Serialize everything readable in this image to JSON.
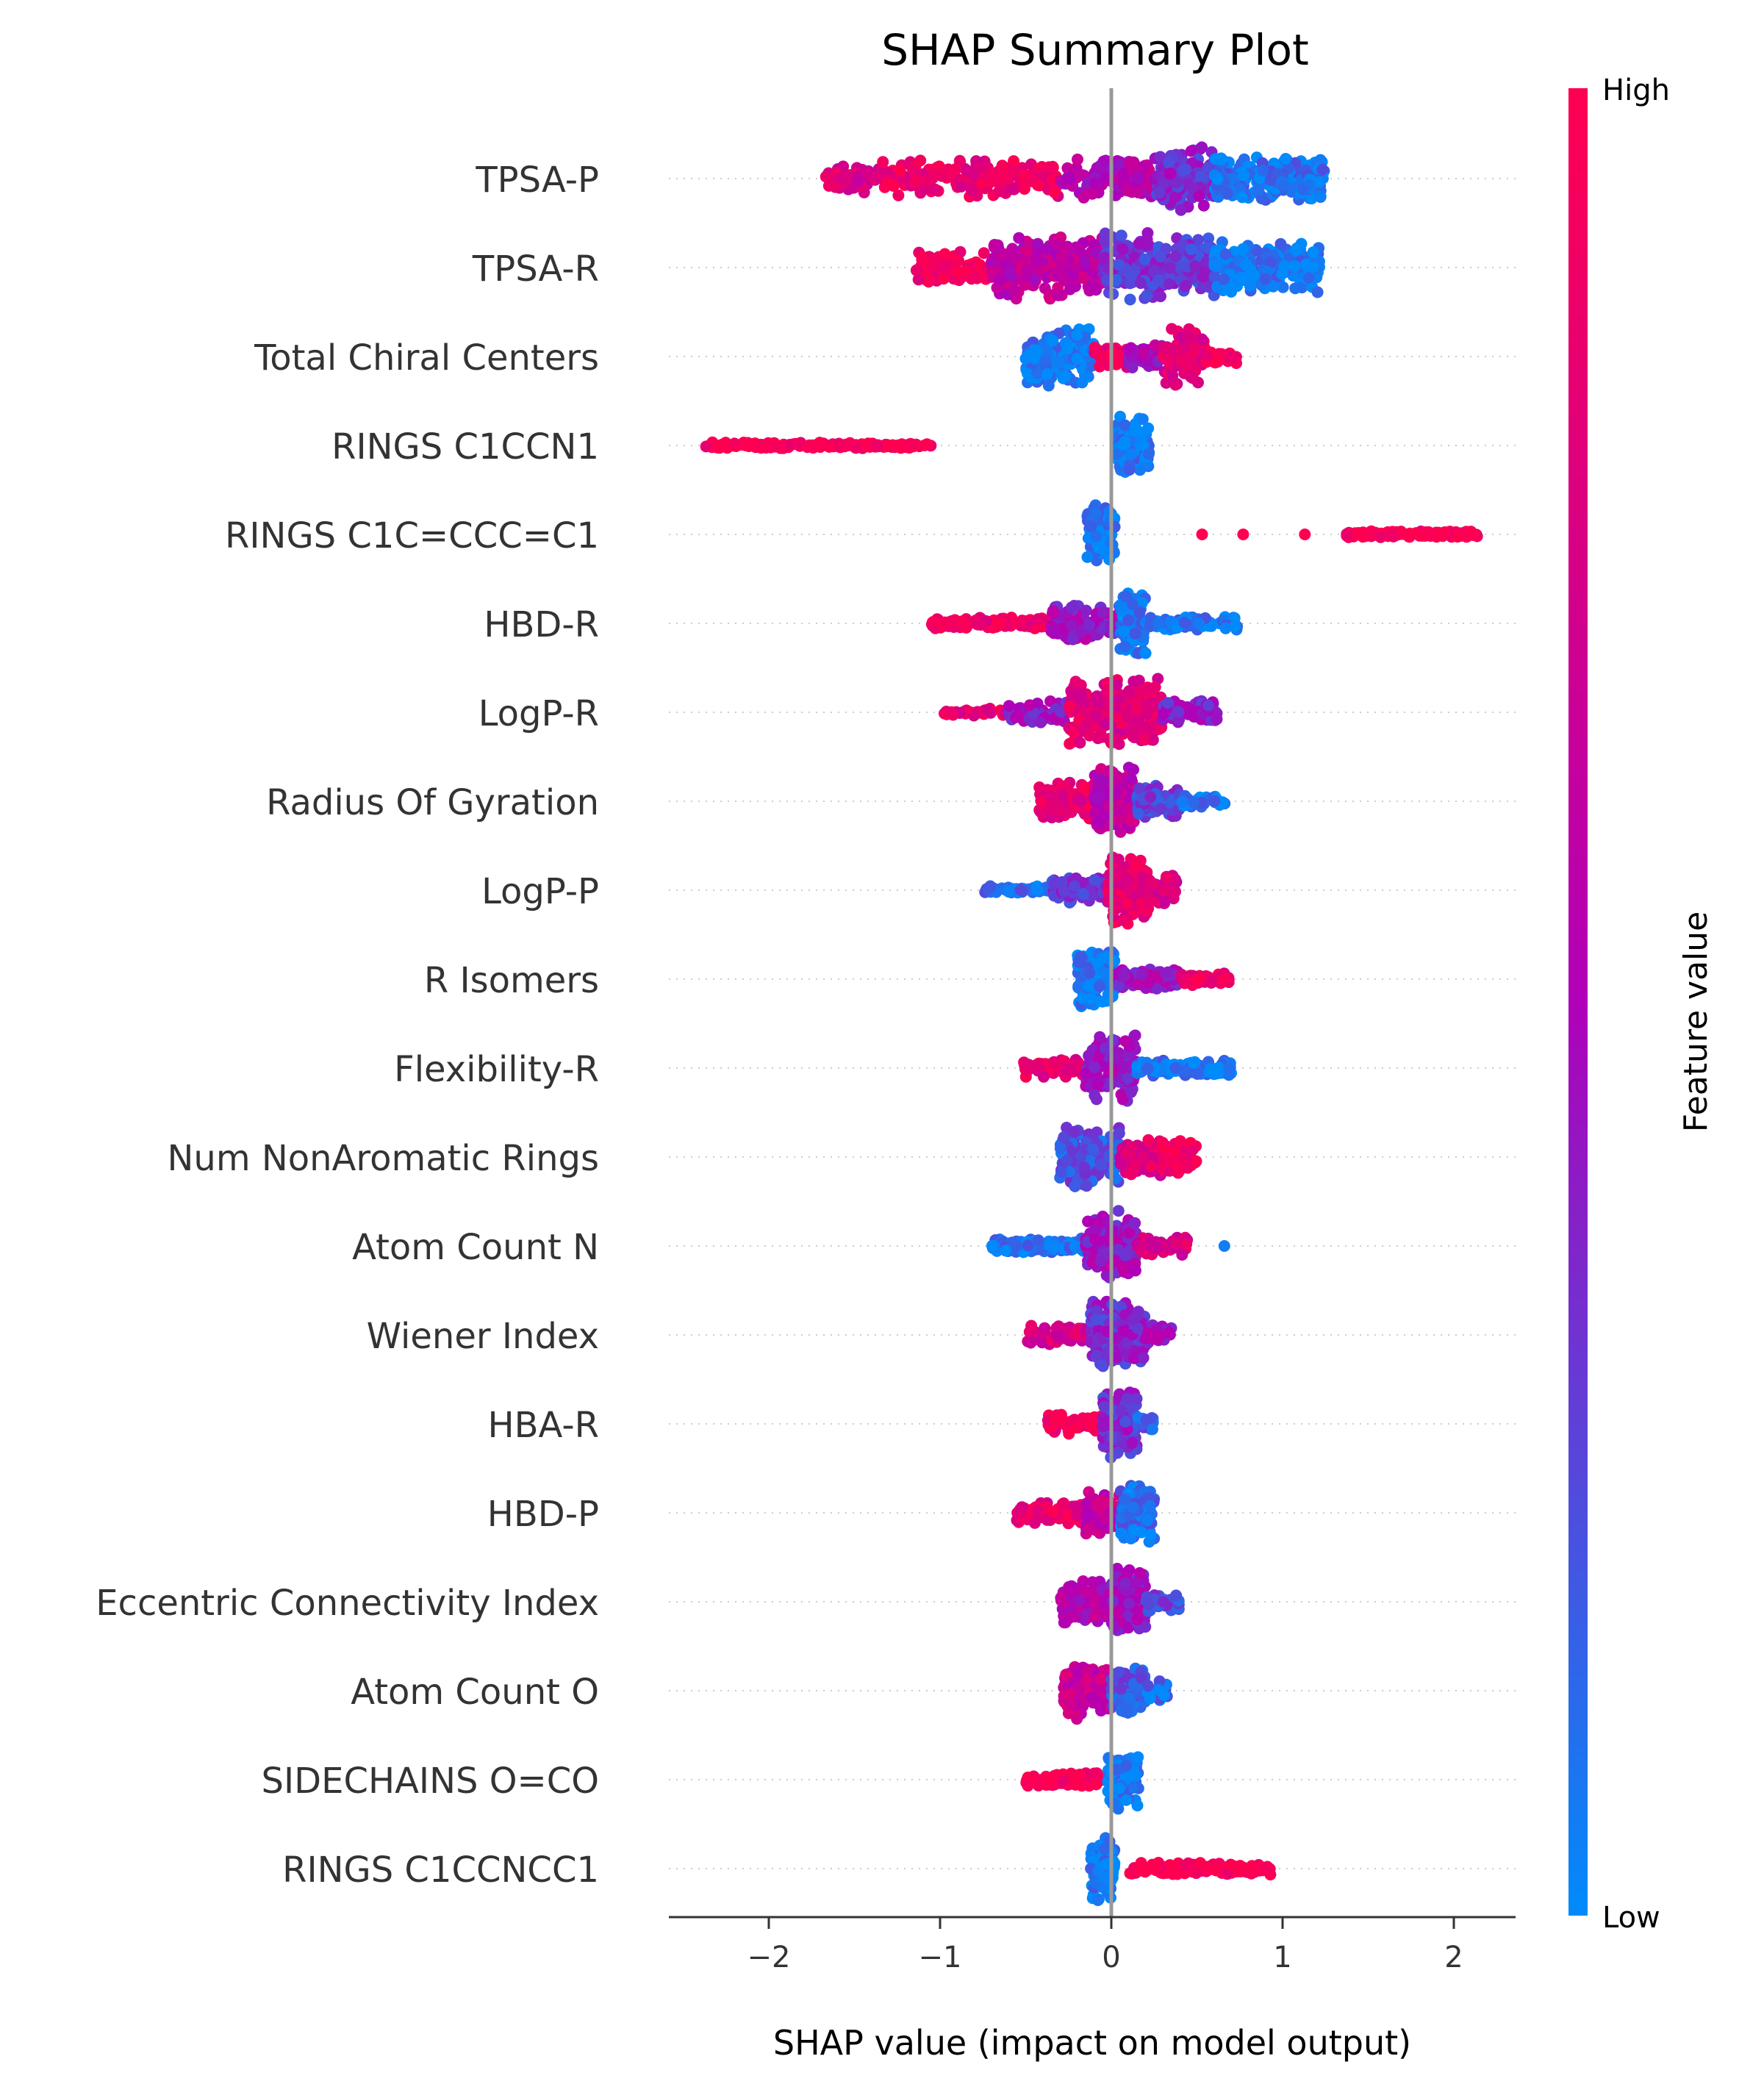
{
  "chart_data": {
    "type": "scatter",
    "subtype": "shap-beeswarm",
    "title": "SHAP Summary Plot",
    "xlabel": "SHAP value (impact on model output)",
    "xlim": [
      -2.6,
      2.35
    ],
    "xticks": [
      -2,
      -1,
      0,
      1,
      2
    ],
    "xtick_labels": [
      "−2",
      "−1",
      "0",
      "1",
      "2"
    ],
    "grid": false,
    "zero_line": true,
    "colorbar": {
      "label": "Feature value",
      "high_label": "High",
      "low_label": "Low",
      "high_color": "#ff0051",
      "mid_color": "#b000b8",
      "low_color": "#008bfb"
    },
    "features": [
      {
        "name": "TPSA-P",
        "segments": [
          {
            "from": -1.68,
            "to": -1.35,
            "color": 0.75,
            "n": 60,
            "w": 0.45
          },
          {
            "from": -1.35,
            "to": -0.3,
            "color": 0.88,
            "n": 180,
            "w": 0.55
          },
          {
            "from": -0.3,
            "to": 0.25,
            "color": 0.55,
            "n": 120,
            "w": 0.6
          },
          {
            "from": 0.25,
            "to": 0.6,
            "color": 0.35,
            "n": 160,
            "w": 0.95
          },
          {
            "from": 0.6,
            "to": 1.25,
            "color": 0.08,
            "n": 200,
            "w": 0.7
          }
        ]
      },
      {
        "name": "TPSA-R",
        "segments": [
          {
            "from": -1.15,
            "to": -0.7,
            "color": 0.95,
            "n": 90,
            "w": 0.5
          },
          {
            "from": -0.7,
            "to": -0.05,
            "color": 0.6,
            "n": 220,
            "w": 0.95
          },
          {
            "from": -0.05,
            "to": 0.6,
            "color": 0.3,
            "n": 260,
            "w": 1.0
          },
          {
            "from": 0.6,
            "to": 1.22,
            "color": 0.05,
            "n": 200,
            "w": 0.75
          }
        ]
      },
      {
        "name": "Total Chiral Centers",
        "segments": [
          {
            "from": -0.5,
            "to": -0.1,
            "color": 0.05,
            "n": 150,
            "w": 0.85
          },
          {
            "from": -0.1,
            "to": 0.1,
            "color": 0.9,
            "n": 40,
            "w": 0.35
          },
          {
            "from": 0.1,
            "to": 0.3,
            "color": 0.5,
            "n": 60,
            "w": 0.4
          },
          {
            "from": 0.3,
            "to": 0.55,
            "color": 0.8,
            "n": 110,
            "w": 0.85
          },
          {
            "from": 0.55,
            "to": 0.73,
            "color": 0.95,
            "n": 30,
            "w": 0.2
          }
        ]
      },
      {
        "name": "RINGS C1CCN1",
        "segments": [
          {
            "from": -2.37,
            "to": -1.05,
            "color": 1.0,
            "n": 160,
            "w": 0.09
          },
          {
            "from": 0.03,
            "to": 0.22,
            "color": 0.05,
            "n": 100,
            "w": 0.85
          }
        ]
      },
      {
        "name": "RINGS C1C=CCC=C1",
        "segments": [
          {
            "from": -0.14,
            "to": 0.02,
            "color": 0.05,
            "n": 90,
            "w": 0.9
          },
          {
            "from": 1.37,
            "to": 2.14,
            "color": 1.0,
            "n": 130,
            "w": 0.1
          }
        ],
        "points": [
          [
            0.53,
            1.0
          ],
          [
            0.77,
            1.0
          ],
          [
            1.13,
            1.0
          ]
        ]
      },
      {
        "name": "HBD-R",
        "segments": [
          {
            "from": -1.05,
            "to": -0.35,
            "color": 0.92,
            "n": 150,
            "w": 0.18
          },
          {
            "from": -0.35,
            "to": 0.05,
            "color": 0.45,
            "n": 100,
            "w": 0.55
          },
          {
            "from": 0.05,
            "to": 0.2,
            "color": 0.05,
            "n": 100,
            "w": 0.95
          },
          {
            "from": 0.2,
            "to": 0.75,
            "color": 0.07,
            "n": 80,
            "w": 0.2
          }
        ]
      },
      {
        "name": "LogP-R",
        "segments": [
          {
            "from": -0.98,
            "to": -0.6,
            "color": 0.85,
            "n": 30,
            "w": 0.15
          },
          {
            "from": -0.6,
            "to": -0.25,
            "color": 0.45,
            "n": 80,
            "w": 0.35
          },
          {
            "from": -0.25,
            "to": 0.3,
            "color": 0.8,
            "n": 250,
            "w": 1.0
          },
          {
            "from": 0.3,
            "to": 0.62,
            "color": 0.4,
            "n": 70,
            "w": 0.35
          }
        ]
      },
      {
        "name": "Radius Of Gyration",
        "segments": [
          {
            "from": -0.42,
            "to": -0.1,
            "color": 0.85,
            "n": 110,
            "w": 0.55
          },
          {
            "from": -0.1,
            "to": 0.15,
            "color": 0.6,
            "n": 150,
            "w": 1.0
          },
          {
            "from": 0.15,
            "to": 0.4,
            "color": 0.25,
            "n": 90,
            "w": 0.5
          },
          {
            "from": 0.4,
            "to": 0.67,
            "color": 0.07,
            "n": 40,
            "w": 0.2
          }
        ]
      },
      {
        "name": "LogP-P",
        "segments": [
          {
            "from": -0.77,
            "to": -0.35,
            "color": 0.1,
            "n": 50,
            "w": 0.12
          },
          {
            "from": -0.35,
            "to": -0.02,
            "color": 0.3,
            "n": 90,
            "w": 0.4
          },
          {
            "from": -0.02,
            "to": 0.22,
            "color": 0.85,
            "n": 180,
            "w": 1.0
          },
          {
            "from": 0.22,
            "to": 0.38,
            "color": 0.75,
            "n": 40,
            "w": 0.45
          }
        ]
      },
      {
        "name": "R Isomers",
        "segments": [
          {
            "from": -0.2,
            "to": 0.02,
            "color": 0.05,
            "n": 120,
            "w": 0.95
          },
          {
            "from": 0.02,
            "to": 0.4,
            "color": 0.45,
            "n": 100,
            "w": 0.3
          },
          {
            "from": 0.4,
            "to": 0.69,
            "color": 0.9,
            "n": 60,
            "w": 0.2
          }
        ]
      },
      {
        "name": "Flexibility-R",
        "segments": [
          {
            "from": -0.52,
            "to": -0.15,
            "color": 0.85,
            "n": 60,
            "w": 0.3
          },
          {
            "from": -0.15,
            "to": 0.15,
            "color": 0.45,
            "n": 160,
            "w": 1.0
          },
          {
            "from": 0.15,
            "to": 0.7,
            "color": 0.05,
            "n": 130,
            "w": 0.25
          }
        ]
      },
      {
        "name": "Num NonAromatic Rings",
        "segments": [
          {
            "from": -0.3,
            "to": 0.05,
            "color": 0.2,
            "n": 150,
            "w": 0.95
          },
          {
            "from": 0.05,
            "to": 0.3,
            "color": 0.8,
            "n": 100,
            "w": 0.55
          },
          {
            "from": 0.3,
            "to": 0.5,
            "color": 0.95,
            "n": 80,
            "w": 0.5
          }
        ]
      },
      {
        "name": "Atom Count N",
        "segments": [
          {
            "from": -0.7,
            "to": -0.15,
            "color": 0.07,
            "n": 160,
            "w": 0.22
          },
          {
            "from": -0.15,
            "to": 0.15,
            "color": 0.45,
            "n": 160,
            "w": 1.0
          },
          {
            "from": 0.15,
            "to": 0.45,
            "color": 0.75,
            "n": 60,
            "w": 0.3
          }
        ],
        "points": [
          [
            0.66,
            0.05
          ]
        ]
      },
      {
        "name": "Wiener Index",
        "segments": [
          {
            "from": -0.52,
            "to": -0.12,
            "color": 0.75,
            "n": 70,
            "w": 0.3
          },
          {
            "from": -0.12,
            "to": 0.2,
            "color": 0.35,
            "n": 200,
            "w": 1.0
          },
          {
            "from": 0.2,
            "to": 0.35,
            "color": 0.45,
            "n": 40,
            "w": 0.35
          }
        ]
      },
      {
        "name": "HBA-R",
        "segments": [
          {
            "from": -0.37,
            "to": -0.05,
            "color": 0.95,
            "n": 80,
            "w": 0.3
          },
          {
            "from": -0.05,
            "to": 0.15,
            "color": 0.35,
            "n": 160,
            "w": 1.0
          },
          {
            "from": 0.15,
            "to": 0.25,
            "color": 0.2,
            "n": 20,
            "w": 0.2
          }
        ]
      },
      {
        "name": "HBD-P",
        "segments": [
          {
            "from": -0.56,
            "to": -0.15,
            "color": 0.88,
            "n": 90,
            "w": 0.35
          },
          {
            "from": -0.15,
            "to": 0.05,
            "color": 0.65,
            "n": 80,
            "w": 0.7
          },
          {
            "from": 0.05,
            "to": 0.25,
            "color": 0.1,
            "n": 120,
            "w": 0.9
          }
        ]
      },
      {
        "name": "Eccentric Connectivity Index",
        "segments": [
          {
            "from": -0.3,
            "to": 0.0,
            "color": 0.55,
            "n": 100,
            "w": 0.7
          },
          {
            "from": 0.0,
            "to": 0.2,
            "color": 0.45,
            "n": 150,
            "w": 1.0
          },
          {
            "from": 0.2,
            "to": 0.4,
            "color": 0.25,
            "n": 50,
            "w": 0.35
          }
        ]
      },
      {
        "name": "Atom Count O",
        "segments": [
          {
            "from": -0.28,
            "to": 0.0,
            "color": 0.65,
            "n": 130,
            "w": 0.9
          },
          {
            "from": 0.0,
            "to": 0.2,
            "color": 0.2,
            "n": 100,
            "w": 0.7
          },
          {
            "from": 0.2,
            "to": 0.33,
            "color": 0.1,
            "n": 30,
            "w": 0.3
          }
        ]
      },
      {
        "name": "SIDECHAINS O=CO",
        "segments": [
          {
            "from": -0.5,
            "to": -0.05,
            "color": 1.0,
            "n": 100,
            "w": 0.2
          },
          {
            "from": -0.02,
            "to": 0.16,
            "color": 0.05,
            "n": 110,
            "w": 0.85
          }
        ]
      },
      {
        "name": "RINGS C1CCNCC1",
        "segments": [
          {
            "from": -0.12,
            "to": 0.02,
            "color": 0.05,
            "n": 110,
            "w": 0.95
          },
          {
            "from": 0.1,
            "to": 0.93,
            "color": 1.0,
            "n": 140,
            "w": 0.18
          }
        ]
      }
    ]
  }
}
